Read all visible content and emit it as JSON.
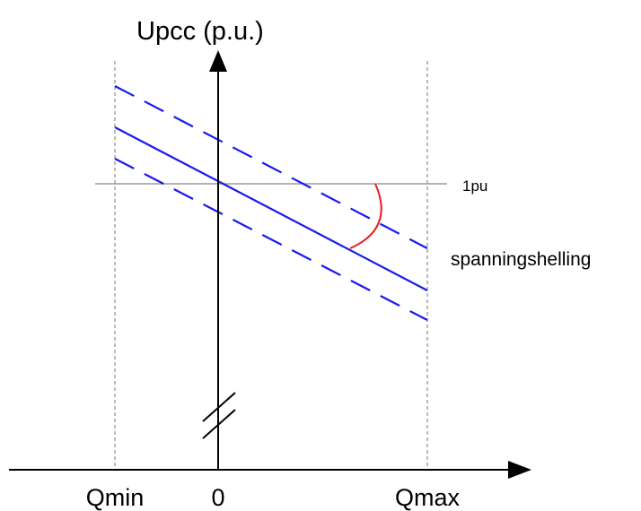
{
  "diagram": {
    "y_axis_label": "Upcc (p.u.)",
    "x_labels": {
      "qmin": "Qmin",
      "zero": "0",
      "qmax": "Qmax"
    },
    "reference_label": "1pu",
    "slope_label": "spanningshelling",
    "colors": {
      "axis": "#000000",
      "characteristic": "#1a1aee",
      "slope_arc": "#ee1c24",
      "reference_line": "#9a9a9a",
      "limit_lines": "#777777"
    }
  }
}
